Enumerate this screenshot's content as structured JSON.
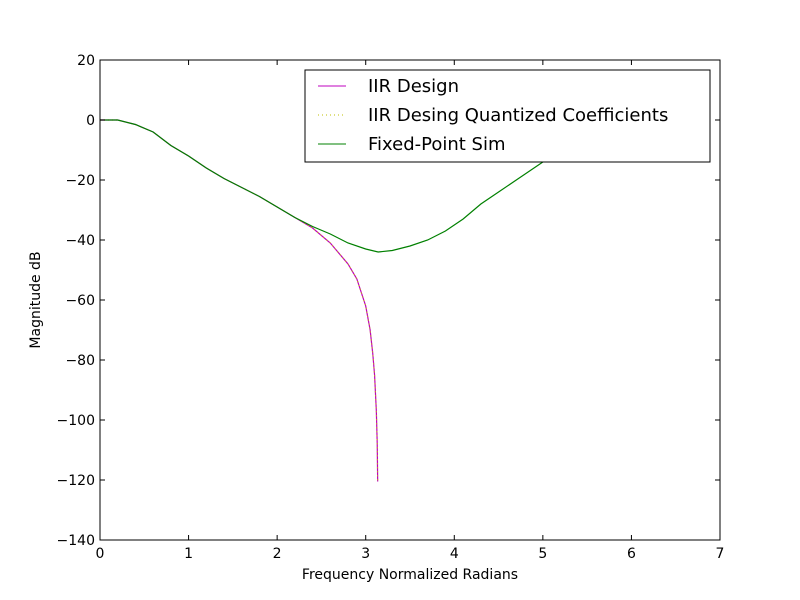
{
  "chart_data": {
    "type": "line",
    "title": "",
    "xlabel": "Frequency Normalized Radians",
    "ylabel": "Magnitude dB",
    "xlim": [
      0,
      7
    ],
    "ylim": [
      -140,
      20
    ],
    "xticks": [
      0,
      1,
      2,
      3,
      4,
      5,
      6,
      7
    ],
    "xtick_labels": [
      "0",
      "1",
      "2",
      "3",
      "4",
      "5",
      "6",
      "7"
    ],
    "yticks": [
      -140,
      -120,
      -100,
      -80,
      -60,
      -40,
      -20,
      0,
      20
    ],
    "ytick_labels": [
      "−140",
      "−120",
      "−100",
      "−80",
      "−60",
      "−40",
      "−20",
      "0",
      "20"
    ],
    "grid": false,
    "legend_position": "top-right",
    "series": [
      {
        "name": "IIR Design",
        "color": "#bf00bf",
        "style": "solid",
        "x": [
          0,
          0.2,
          0.4,
          0.6,
          0.8,
          1.0,
          1.2,
          1.4,
          1.6,
          1.8,
          2.0,
          2.2,
          2.4,
          2.6,
          2.8,
          2.9,
          3.0,
          3.05,
          3.08,
          3.1,
          3.12,
          3.13,
          3.135
        ],
        "y": [
          0,
          0,
          -1.5,
          -4,
          -8.5,
          -12,
          -16,
          -19.5,
          -22.5,
          -25.5,
          -29,
          -32.5,
          -36,
          -41,
          -48,
          -53,
          -62,
          -70,
          -78,
          -85,
          -97,
          -108,
          -120.5
        ]
      },
      {
        "name": "IIR Desing Quantized Coefficients",
        "color": "#bfbf00",
        "style": "dotted",
        "x": [
          0,
          0.2,
          0.4,
          0.6,
          0.8,
          1.0,
          1.2,
          1.4,
          1.6,
          1.8,
          2.0,
          2.2,
          2.4,
          2.6,
          2.8,
          2.9,
          3.0,
          3.05,
          3.08,
          3.1,
          3.12,
          3.13,
          3.135
        ],
        "y": [
          0,
          0,
          -1.5,
          -4,
          -8.5,
          -12,
          -16,
          -19.5,
          -22.5,
          -25.5,
          -29,
          -32.5,
          -36,
          -41,
          -48,
          -53,
          -62,
          -70,
          -78,
          -85,
          -97,
          -108,
          -120.5
        ]
      },
      {
        "name": "Fixed-Point Sim",
        "color": "#008000",
        "style": "solid",
        "x": [
          0,
          0.2,
          0.4,
          0.6,
          0.8,
          1.0,
          1.2,
          1.4,
          1.6,
          1.8,
          2.0,
          2.2,
          2.4,
          2.6,
          2.8,
          3.0,
          3.14,
          3.3,
          3.5,
          3.7,
          3.9,
          4.1,
          4.3,
          4.5,
          4.7,
          4.9,
          5.1,
          5.3,
          5.5,
          5.7,
          5.9,
          6.1,
          6.28
        ],
        "y": [
          0,
          0,
          -1.5,
          -4,
          -8.5,
          -12,
          -16,
          -19.5,
          -22.5,
          -25.5,
          -29,
          -32.5,
          -35.5,
          -38,
          -41,
          -43,
          -44,
          -43.5,
          -42,
          -40,
          -37,
          -33,
          -28,
          -24,
          -20,
          -16,
          -12,
          -8.5,
          -5,
          -3,
          -1.5,
          -0.5,
          0
        ]
      }
    ]
  }
}
